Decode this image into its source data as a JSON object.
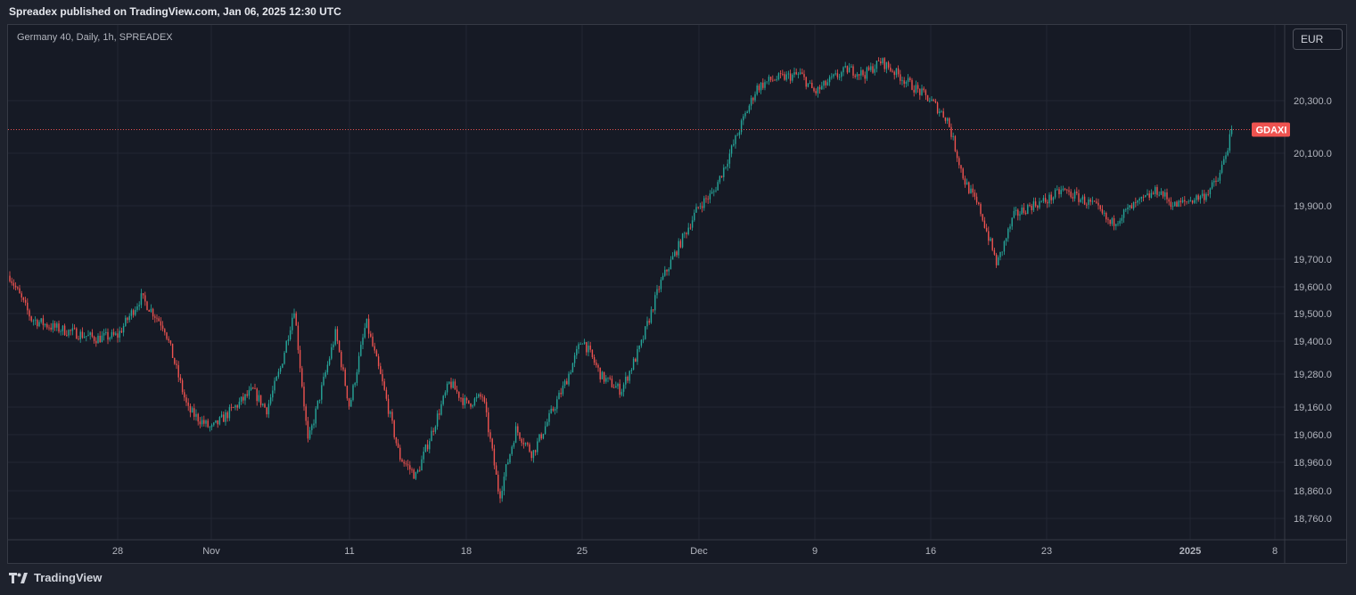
{
  "header": {
    "published": "Spreadex published on TradingView.com, Jan 06, 2025 12:30 UTC"
  },
  "chart": {
    "symbol_line": "Germany 40, Daily, 1h, SPREADEX",
    "currency_button": "EUR",
    "price_badge": "GDAXI"
  },
  "footer": {
    "brand": "TradingView"
  },
  "colors": {
    "up": "#26a69a",
    "down": "#ef5350",
    "background": "#161a25",
    "grid": "#232734",
    "price_line": "#ef5350"
  },
  "chart_data": {
    "type": "candlestick",
    "y_axis_labels": [
      "20,300.0",
      "20,100.0",
      "19,900.0",
      "19,700.0",
      "19,600.0",
      "19,500.0",
      "19,400.0",
      "19,280.0",
      "19,160.0",
      "19,060.0",
      "18,960.0",
      "18,860.0",
      "18,760.0"
    ],
    "x_axis_labels": [
      "28",
      "Nov",
      "11",
      "18",
      "25",
      "Dec",
      "9",
      "16",
      "23",
      "2025",
      "8"
    ],
    "last_price": 20190,
    "price_path": [
      [
        "Oct 23",
        19640
      ],
      [
        "Oct 24",
        19480
      ],
      [
        "Oct 25",
        19450
      ],
      [
        "Oct 27",
        19410
      ],
      [
        "Oct 28",
        19420
      ],
      [
        "Oct 29",
        19560
      ],
      [
        "Oct 30",
        19450
      ],
      [
        "Oct 31",
        19150
      ],
      [
        "Nov 1",
        19080
      ],
      [
        "Nov 4",
        19220
      ],
      [
        "Nov 5",
        19150
      ],
      [
        "Nov 6",
        19300
      ],
      [
        "Nov 7",
        19520
      ],
      [
        "Nov 8",
        19030
      ],
      [
        "Nov 10",
        19430
      ],
      [
        "Nov 11",
        19160
      ],
      [
        "Nov 12",
        19470
      ],
      [
        "Nov 13",
        19240
      ],
      [
        "Nov 14",
        18980
      ],
      [
        "Nov 15",
        18910
      ],
      [
        "Nov 17",
        19250
      ],
      [
        "Nov 18",
        19170
      ],
      [
        "Nov 19",
        19200
      ],
      [
        "Nov 20",
        18840
      ],
      [
        "Nov 21",
        19080
      ],
      [
        "Nov 22",
        18990
      ],
      [
        "Nov 24",
        19250
      ],
      [
        "Nov 25",
        19410
      ],
      [
        "Nov 26",
        19270
      ],
      [
        "Nov 27",
        19220
      ],
      [
        "Nov 28",
        19380
      ],
      [
        "Nov 29",
        19610
      ],
      [
        "Dec 1",
        19900
      ],
      [
        "Dec 2",
        19950
      ],
      [
        "Dec 3",
        20080
      ],
      [
        "Dec 4",
        20220
      ],
      [
        "Dec 5",
        20350
      ],
      [
        "Dec 6",
        20380
      ],
      [
        "Dec 8",
        20400
      ],
      [
        "Dec 9",
        20330
      ],
      [
        "Dec 10",
        20380
      ],
      [
        "Dec 11",
        20420
      ],
      [
        "Dec 12",
        20400
      ],
      [
        "Dec 13",
        20450
      ],
      [
        "Dec 15",
        20350
      ],
      [
        "Dec 16",
        20300
      ],
      [
        "Dec 17",
        20230
      ],
      [
        "Dec 18",
        20000
      ],
      [
        "Dec 19",
        19880
      ],
      [
        "Dec 20",
        19680
      ],
      [
        "Dec 21",
        19860
      ],
      [
        "Dec 22",
        19900
      ],
      [
        "Dec 23",
        19920
      ],
      [
        "Dec 24",
        19960
      ],
      [
        "Dec 26",
        19900
      ],
      [
        "Dec 27",
        19830
      ],
      [
        "Dec 28",
        19880
      ],
      [
        "Dec 29",
        19920
      ],
      [
        "Dec 30",
        19960
      ],
      [
        "Dec 31",
        19900
      ],
      [
        "Jan 2",
        19940
      ],
      [
        "Jan 3",
        20000
      ],
      [
        "Jan 4",
        20190
      ]
    ]
  }
}
